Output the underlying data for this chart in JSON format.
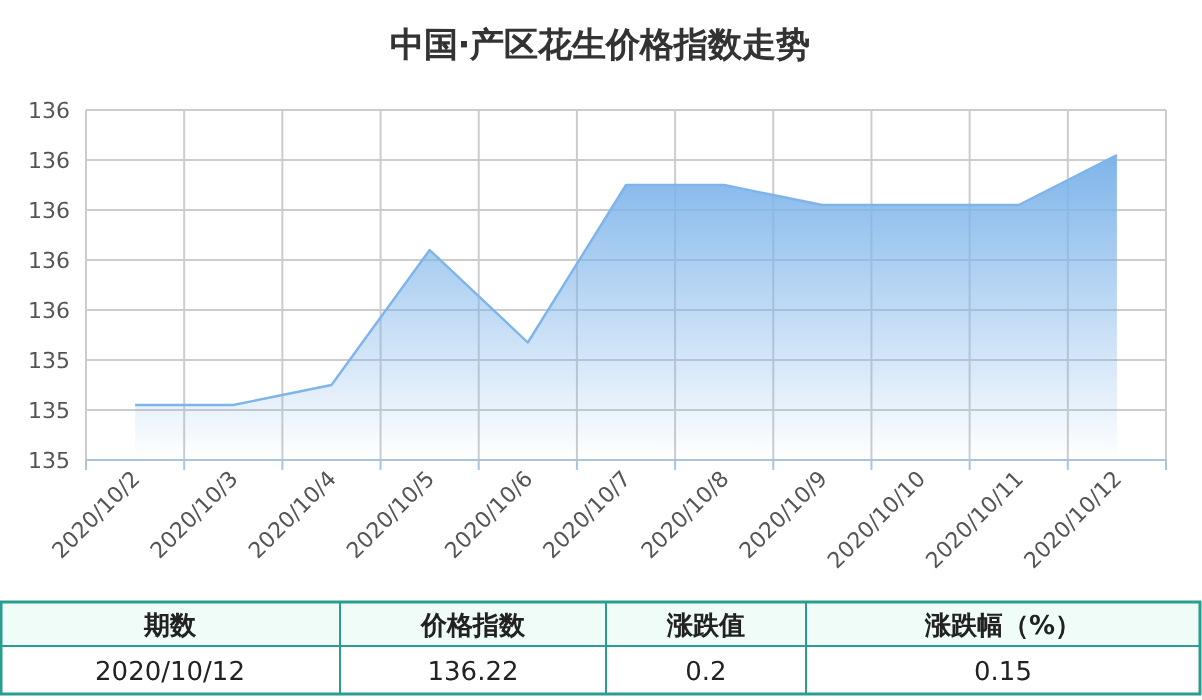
{
  "chart_data": {
    "type": "area",
    "title": "中国·产区花生价格指数走势",
    "categories": [
      "2020/10/2",
      "2020/10/3",
      "2020/10/4",
      "2020/10/5",
      "2020/10/6",
      "2020/10/7",
      "2020/10/8",
      "2020/10/9",
      "2020/10/10",
      "2020/10/11",
      "2020/10/12"
    ],
    "series": [
      {
        "color": "#7eb4ea",
        "values": [
          135.22,
          135.22,
          135.3,
          135.84,
          135.47,
          136.1,
          136.1,
          136.02,
          136.02,
          136.02,
          136.22
        ]
      }
    ],
    "ylim": [
      135,
      136.4
    ],
    "yticks": [
      {
        "value": 135,
        "label": "135"
      },
      {
        "value": 135.2,
        "label": "135"
      },
      {
        "value": 135.4,
        "label": "135"
      },
      {
        "value": 135.6,
        "label": "136"
      },
      {
        "value": 135.8,
        "label": "136"
      },
      {
        "value": 136,
        "label": "136"
      },
      {
        "value": 136.2,
        "label": "136"
      },
      {
        "value": 136.4,
        "label": "136"
      }
    ],
    "grid": true,
    "annotations": [
      "期数",
      "价格指数",
      "涨跌值",
      "涨跌幅（%）",
      "2020/10/12",
      "136.22",
      "0.2",
      "0.15"
    ]
  }
}
